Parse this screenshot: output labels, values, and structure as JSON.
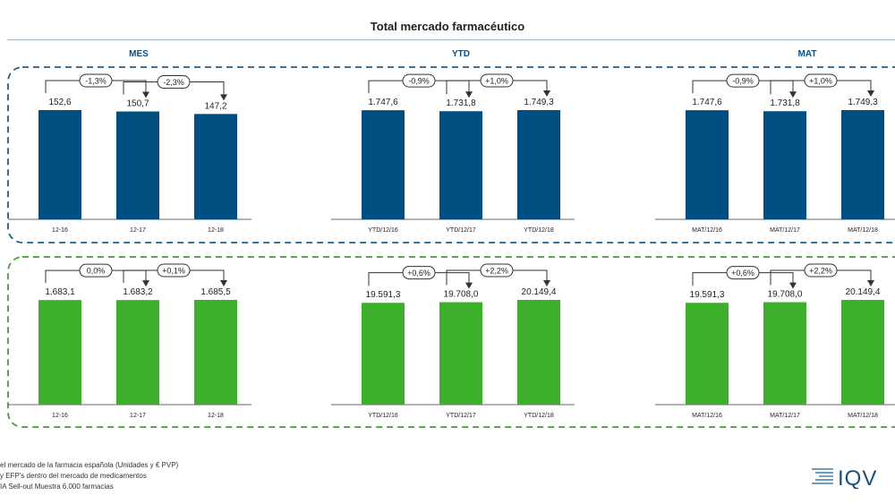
{
  "title": "Total mercado farmacéutico",
  "columns": [
    "MES",
    "YTD",
    "MAT"
  ],
  "colors": {
    "units": "#004f82",
    "values": "#3cb02b",
    "units_frame": "#1f5f8b",
    "values_frame": "#4a9a3a",
    "axis": "#666666"
  },
  "chart_data": [
    {
      "type": "bar",
      "row": "top",
      "column": "MES",
      "categories": [
        "12-16",
        "12-17",
        "12-18"
      ],
      "values": [
        152.6,
        150.7,
        147.2
      ],
      "value_labels": [
        "152,6",
        "150,7",
        "147,2"
      ],
      "growth_labels": [
        "-1,3%",
        "-2,3%"
      ]
    },
    {
      "type": "bar",
      "row": "top",
      "column": "YTD",
      "categories": [
        "YTD/12/16",
        "YTD/12/17",
        "YTD/12/18"
      ],
      "values": [
        1747.6,
        1731.8,
        1749.3
      ],
      "value_labels": [
        "1.747,6",
        "1.731,8",
        "1.749,3"
      ],
      "growth_labels": [
        "-0,9%",
        "+1,0%"
      ]
    },
    {
      "type": "bar",
      "row": "top",
      "column": "MAT",
      "categories": [
        "MAT/12/16",
        "MAT/12/17",
        "MAT/12/18"
      ],
      "values": [
        1747.6,
        1731.8,
        1749.3
      ],
      "value_labels": [
        "1.747,6",
        "1.731,8",
        "1.749,3"
      ],
      "growth_labels": [
        "-0,9%",
        "+1,0%"
      ]
    },
    {
      "type": "bar",
      "row": "bottom",
      "column": "MES",
      "categories": [
        "12-16",
        "12-17",
        "12-18"
      ],
      "values": [
        1683.1,
        1683.2,
        1685.5
      ],
      "value_labels": [
        "1.683,1",
        "1.683,2",
        "1.685,5"
      ],
      "growth_labels": [
        "0,0%",
        "+0,1%"
      ]
    },
    {
      "type": "bar",
      "row": "bottom",
      "column": "YTD",
      "categories": [
        "YTD/12/16",
        "YTD/12/17",
        "YTD/12/18"
      ],
      "values": [
        19591.3,
        19708.0,
        20149.4
      ],
      "value_labels": [
        "19.591,3",
        "19.708,0",
        "20.149,4"
      ],
      "growth_labels": [
        "+0,6%",
        "+2,2%"
      ]
    },
    {
      "type": "bar",
      "row": "bottom",
      "column": "MAT",
      "categories": [
        "MAT/12/16",
        "MAT/12/17",
        "MAT/12/18"
      ],
      "values": [
        19591.3,
        19708.0,
        20149.4
      ],
      "value_labels": [
        "19.591,3",
        "19.708,0",
        "20.149,4"
      ],
      "growth_labels": [
        "+0,6%",
        "+2,2%"
      ]
    }
  ],
  "footnotes": [
    "el mercado de la farmacia española (Unidades y € PVP)",
    "y EFP's dentro del mercado de medicamentos",
    "IA Sell-out Muestra 6.000 farmacias"
  ],
  "logo": {
    "text": "IQV",
    "icon": "iqvia-lines-logo"
  }
}
